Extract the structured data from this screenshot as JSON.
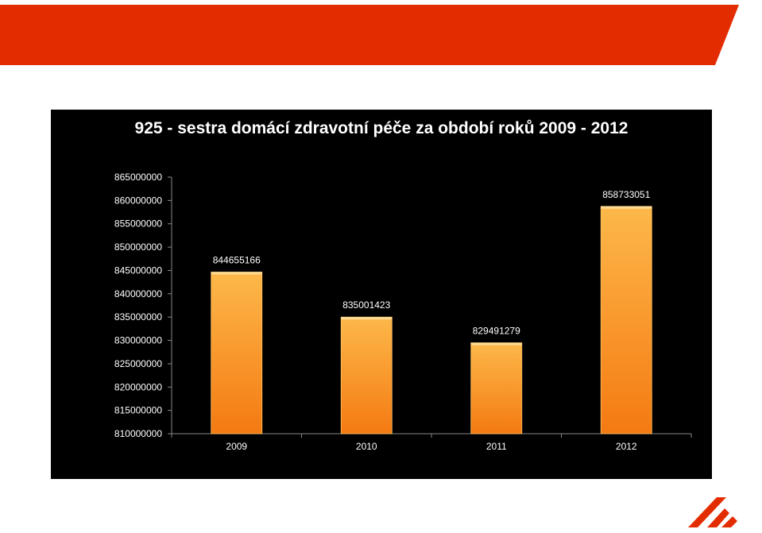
{
  "colors": {
    "banner": "#e32c00",
    "panel": "#000000",
    "bar_top": "#fdb84a",
    "bar_bottom": "#f47a12",
    "text": "#ffffff",
    "logo": "#e32c00"
  },
  "logo": {
    "icon": "brand-logo-icon"
  },
  "chart_data": {
    "type": "bar",
    "title": "925 - sestra domácí zdravotní péče za období roků  2009 - 2012",
    "xlabel": "",
    "ylabel": "",
    "categories": [
      "2009",
      "2010",
      "2011",
      "2012"
    ],
    "values": [
      844655166,
      835001423,
      829491279,
      858733051
    ],
    "data_labels": [
      "844655166",
      "835001423",
      "829491279",
      "858733051"
    ],
    "ylim": [
      810000000,
      865000000
    ],
    "yticks": [
      "810000000",
      "815000000",
      "820000000",
      "825000000",
      "830000000",
      "835000000",
      "840000000",
      "845000000",
      "850000000",
      "855000000",
      "860000000",
      "865000000"
    ],
    "grid": false,
    "legend": "none"
  }
}
